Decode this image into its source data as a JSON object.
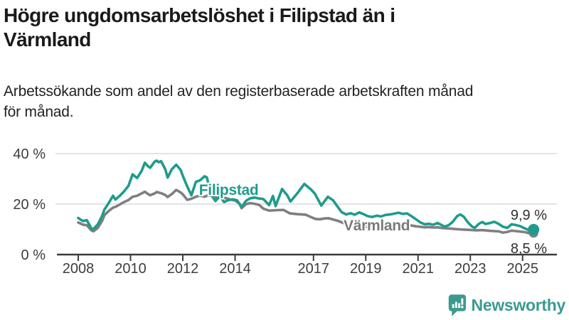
{
  "header": {
    "title_lines": [
      "Högre ungdomsarbetslöshet i Filipstad än i",
      "Värmland"
    ],
    "subtitle_lines": [
      "Arbetssökande som andel av den registerbaserade arbetskraften månad",
      "för månad."
    ]
  },
  "footer": {
    "brand": "Newsworthy",
    "brand_color": "#3b9a90"
  },
  "colors": {
    "filipstad": "#1f9b8d",
    "varmland": "#7f7f7f",
    "varmland_label": "#7a7a7a",
    "grid": "#dcdcdc",
    "axis": "#3c3c3c",
    "tick_text": "#3d3d3d",
    "value_text": "#303030",
    "title_text": "#1a1a1a"
  },
  "chart_data": {
    "type": "line",
    "title": "Högre ungdomsarbetslöshet i Filipstad än i Värmland",
    "subtitle": "Arbetssökande som andel av den registerbaserade arbetskraften månad för månad.",
    "xlabel": "",
    "ylabel": "",
    "unit": "%",
    "grid": "horizontal",
    "legend_position": "inline-labels",
    "ylim": [
      0,
      43
    ],
    "xlim": [
      2007.4,
      2026.4
    ],
    "y_ticks": [
      {
        "value": 0,
        "label": "0 %"
      },
      {
        "value": 20,
        "label": "20 %"
      },
      {
        "value": 40,
        "label": "40 %"
      }
    ],
    "x_ticks": [
      {
        "value": 2008,
        "label": "2008"
      },
      {
        "value": 2010,
        "label": "2010"
      },
      {
        "value": 2012,
        "label": "2012"
      },
      {
        "value": 2014,
        "label": "2014"
      },
      {
        "value": 2017,
        "label": "2017"
      },
      {
        "value": 2019,
        "label": "2019"
      },
      {
        "value": 2021,
        "label": "2021"
      },
      {
        "value": 2023,
        "label": "2023"
      },
      {
        "value": 2025,
        "label": "2025"
      }
    ],
    "series": [
      {
        "name": "Filipstad",
        "color": "#1f9b8d",
        "end_label": "9,9 %",
        "end_value": 9.9,
        "label_anchor": {
          "x": 2012.62,
          "y": 23.7
        },
        "points": [
          [
            2008.0,
            14.5
          ],
          [
            2008.17,
            13.3
          ],
          [
            2008.33,
            13.6
          ],
          [
            2008.5,
            10.4
          ],
          [
            2008.58,
            10.1
          ],
          [
            2008.75,
            12.0
          ],
          [
            2008.92,
            15.5
          ],
          [
            2009.0,
            17.8
          ],
          [
            2009.17,
            20.5
          ],
          [
            2009.33,
            23.3
          ],
          [
            2009.42,
            21.8
          ],
          [
            2009.58,
            23.2
          ],
          [
            2009.75,
            25.0
          ],
          [
            2009.92,
            27.2
          ],
          [
            2010.08,
            31.8
          ],
          [
            2010.25,
            30.3
          ],
          [
            2010.42,
            33.0
          ],
          [
            2010.55,
            36.4
          ],
          [
            2010.67,
            35.0
          ],
          [
            2010.75,
            34.4
          ],
          [
            2010.92,
            36.8
          ],
          [
            2011.0,
            37.2
          ],
          [
            2011.08,
            36.6
          ],
          [
            2011.17,
            37.0
          ],
          [
            2011.33,
            33.8
          ],
          [
            2011.42,
            30.5
          ],
          [
            2011.58,
            33.8
          ],
          [
            2011.75,
            35.6
          ],
          [
            2011.92,
            33.5
          ],
          [
            2012.0,
            31.2
          ],
          [
            2012.17,
            27.0
          ],
          [
            2012.33,
            23.5
          ],
          [
            2012.5,
            28.8
          ],
          [
            2012.67,
            29.5
          ],
          [
            2012.83,
            31.0
          ],
          [
            2012.92,
            30.6
          ],
          [
            2013.08,
            23.8
          ],
          [
            2013.25,
            21.2
          ],
          [
            2013.42,
            23.2
          ],
          [
            2013.58,
            20.8
          ],
          [
            2013.75,
            21.6
          ],
          [
            2013.92,
            21.9
          ],
          [
            2014.08,
            21.5
          ],
          [
            2014.25,
            18.8
          ],
          [
            2014.42,
            21.3
          ],
          [
            2014.58,
            22.3
          ],
          [
            2014.75,
            22.6
          ],
          [
            2014.92,
            22.2
          ],
          [
            2015.08,
            22.0
          ],
          [
            2015.3,
            19.6
          ],
          [
            2015.45,
            23.2
          ],
          [
            2015.55,
            19.2
          ],
          [
            2015.8,
            26.0
          ],
          [
            2016.0,
            23.4
          ],
          [
            2016.12,
            21.0
          ],
          [
            2016.4,
            24.5
          ],
          [
            2016.65,
            28.0
          ],
          [
            2016.9,
            25.8
          ],
          [
            2017.05,
            24.2
          ],
          [
            2017.3,
            19.4
          ],
          [
            2017.55,
            22.9
          ],
          [
            2017.75,
            21.5
          ],
          [
            2017.92,
            19.0
          ],
          [
            2018.08,
            16.8
          ],
          [
            2018.25,
            15.9
          ],
          [
            2018.42,
            16.4
          ],
          [
            2018.58,
            15.8
          ],
          [
            2018.75,
            16.7
          ],
          [
            2018.92,
            16.0
          ],
          [
            2019.08,
            15.2
          ],
          [
            2019.25,
            14.9
          ],
          [
            2019.42,
            15.4
          ],
          [
            2019.58,
            15.1
          ],
          [
            2019.75,
            15.7
          ],
          [
            2019.92,
            15.9
          ],
          [
            2020.08,
            16.2
          ],
          [
            2020.25,
            16.6
          ],
          [
            2020.42,
            16.1
          ],
          [
            2020.58,
            16.3
          ],
          [
            2020.75,
            15.2
          ],
          [
            2020.92,
            14.0
          ],
          [
            2021.08,
            12.8
          ],
          [
            2021.25,
            12.0
          ],
          [
            2021.42,
            12.2
          ],
          [
            2021.58,
            11.8
          ],
          [
            2021.75,
            12.5
          ],
          [
            2021.92,
            11.6
          ],
          [
            2022.0,
            11.1
          ],
          [
            2022.17,
            11.6
          ],
          [
            2022.33,
            13.0
          ],
          [
            2022.5,
            15.3
          ],
          [
            2022.62,
            15.9
          ],
          [
            2022.75,
            15.0
          ],
          [
            2022.92,
            12.6
          ],
          [
            2023.08,
            11.0
          ],
          [
            2023.17,
            10.6
          ],
          [
            2023.33,
            12.2
          ],
          [
            2023.46,
            12.9
          ],
          [
            2023.58,
            12.1
          ],
          [
            2023.75,
            12.5
          ],
          [
            2023.92,
            13.0
          ],
          [
            2024.08,
            12.2
          ],
          [
            2024.25,
            11.0
          ],
          [
            2024.42,
            10.6
          ],
          [
            2024.58,
            12.0
          ],
          [
            2024.75,
            11.7
          ],
          [
            2024.92,
            11.2
          ],
          [
            2025.08,
            10.4
          ],
          [
            2025.17,
            10.0
          ],
          [
            2025.29,
            9.4
          ],
          [
            2025.42,
            9.9
          ]
        ]
      },
      {
        "name": "Värmland",
        "color": "#7f7f7f",
        "end_label": "8,5 %",
        "end_value": 8.5,
        "label_anchor": {
          "x": 2018.15,
          "y": 9.6
        },
        "points": [
          [
            2008.0,
            12.7
          ],
          [
            2008.17,
            11.9
          ],
          [
            2008.33,
            11.6
          ],
          [
            2008.5,
            9.6
          ],
          [
            2008.58,
            9.2
          ],
          [
            2008.75,
            10.6
          ],
          [
            2008.92,
            13.5
          ],
          [
            2009.0,
            15.6
          ],
          [
            2009.17,
            17.3
          ],
          [
            2009.33,
            18.6
          ],
          [
            2009.42,
            18.9
          ],
          [
            2009.58,
            19.8
          ],
          [
            2009.75,
            20.8
          ],
          [
            2009.92,
            21.6
          ],
          [
            2010.08,
            22.9
          ],
          [
            2010.25,
            23.3
          ],
          [
            2010.42,
            24.2
          ],
          [
            2010.55,
            24.9
          ],
          [
            2010.67,
            24.0
          ],
          [
            2010.75,
            23.5
          ],
          [
            2010.92,
            24.2
          ],
          [
            2011.0,
            24.8
          ],
          [
            2011.17,
            24.3
          ],
          [
            2011.33,
            23.6
          ],
          [
            2011.42,
            22.8
          ],
          [
            2011.58,
            24.0
          ],
          [
            2011.75,
            25.6
          ],
          [
            2011.92,
            24.6
          ],
          [
            2012.0,
            23.9
          ],
          [
            2012.17,
            21.7
          ],
          [
            2012.33,
            22.1
          ],
          [
            2012.5,
            22.9
          ],
          [
            2012.67,
            23.4
          ],
          [
            2012.83,
            22.9
          ],
          [
            2013.0,
            23.6
          ],
          [
            2013.17,
            23.0
          ],
          [
            2013.33,
            22.4
          ],
          [
            2013.5,
            22.6
          ],
          [
            2013.67,
            22.3
          ],
          [
            2013.83,
            21.8
          ],
          [
            2014.0,
            21.4
          ],
          [
            2014.17,
            20.2
          ],
          [
            2014.25,
            18.4
          ],
          [
            2014.42,
            20.0
          ],
          [
            2014.58,
            20.4
          ],
          [
            2014.75,
            20.1
          ],
          [
            2014.92,
            19.7
          ],
          [
            2015.08,
            18.2
          ],
          [
            2015.3,
            17.4
          ],
          [
            2015.6,
            17.6
          ],
          [
            2015.85,
            17.7
          ],
          [
            2016.1,
            16.3
          ],
          [
            2016.4,
            16.0
          ],
          [
            2016.7,
            15.8
          ],
          [
            2016.92,
            14.8
          ],
          [
            2017.08,
            14.1
          ],
          [
            2017.25,
            14.0
          ],
          [
            2017.42,
            14.3
          ],
          [
            2017.58,
            14.4
          ],
          [
            2017.75,
            13.9
          ],
          [
            2017.92,
            13.4
          ],
          [
            2018.08,
            12.8
          ],
          [
            2018.25,
            12.0
          ],
          [
            2018.42,
            11.4
          ],
          [
            2018.58,
            11.1
          ],
          [
            2018.75,
            11.2
          ],
          [
            2018.92,
            11.0
          ],
          [
            2019.08,
            10.9
          ],
          [
            2019.25,
            10.8
          ],
          [
            2019.42,
            11.0
          ],
          [
            2019.58,
            11.1
          ],
          [
            2019.75,
            11.3
          ],
          [
            2019.92,
            11.2
          ],
          [
            2020.08,
            11.3
          ],
          [
            2020.25,
            12.1
          ],
          [
            2020.42,
            11.9
          ],
          [
            2020.58,
            11.7
          ],
          [
            2020.75,
            11.5
          ],
          [
            2020.92,
            11.2
          ],
          [
            2021.08,
            11.0
          ],
          [
            2021.25,
            10.8
          ],
          [
            2021.42,
            10.9
          ],
          [
            2021.58,
            10.7
          ],
          [
            2021.75,
            10.8
          ],
          [
            2021.92,
            10.5
          ],
          [
            2022.08,
            10.4
          ],
          [
            2022.25,
            10.3
          ],
          [
            2022.42,
            10.1
          ],
          [
            2022.58,
            10.0
          ],
          [
            2022.75,
            9.9
          ],
          [
            2022.92,
            9.8
          ],
          [
            2023.08,
            9.7
          ],
          [
            2023.25,
            9.6
          ],
          [
            2023.42,
            9.7
          ],
          [
            2023.58,
            9.6
          ],
          [
            2023.75,
            9.4
          ],
          [
            2023.92,
            9.3
          ],
          [
            2024.08,
            9.2
          ],
          [
            2024.25,
            8.7
          ],
          [
            2024.42,
            9.0
          ],
          [
            2024.58,
            9.5
          ],
          [
            2024.75,
            9.3
          ],
          [
            2024.92,
            9.1
          ],
          [
            2025.08,
            8.9
          ],
          [
            2025.17,
            8.7
          ],
          [
            2025.29,
            8.3
          ],
          [
            2025.42,
            8.5
          ]
        ]
      }
    ]
  }
}
